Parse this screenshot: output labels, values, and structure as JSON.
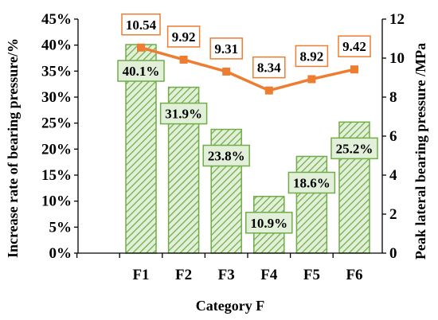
{
  "chart_data": {
    "type": "bar",
    "categories": [
      "F1",
      "F2",
      "F3",
      "F4",
      "F5",
      "F6"
    ],
    "xlabel": "Category F",
    "series": [
      {
        "type": "bar",
        "axis": "left",
        "values": [
          40.1,
          31.9,
          23.8,
          10.9,
          18.6,
          25.2
        ],
        "labels": [
          "40.1%",
          "31.9%",
          "23.8%",
          "10.9%",
          "18.6%",
          "25.2%"
        ]
      },
      {
        "type": "line",
        "axis": "right",
        "values": [
          10.54,
          9.92,
          9.31,
          8.34,
          8.92,
          9.42
        ],
        "labels": [
          "10.54",
          "9.92",
          "9.31",
          "8.34",
          "8.92",
          "9.42"
        ]
      }
    ],
    "y_left": {
      "label": "Increase rate of bearing pressure/%",
      "range": [
        0,
        45
      ],
      "ticks": [
        "0%",
        "5%",
        "10%",
        "15%",
        "20%",
        "25%",
        "30%",
        "35%",
        "40%",
        "45%"
      ]
    },
    "y_right": {
      "label": "Peak lateral bearing pressure /MPa",
      "range": [
        0,
        12
      ],
      "ticks": [
        "0",
        "2",
        "4",
        "6",
        "8",
        "10",
        "12"
      ]
    },
    "colors": {
      "bar_stroke": "#70ad47",
      "bar_fill": "#e2efd9",
      "hatch": "#70ad47",
      "line": "#ed7d31",
      "axis": "#000000"
    },
    "grid": false,
    "legend": "none"
  }
}
